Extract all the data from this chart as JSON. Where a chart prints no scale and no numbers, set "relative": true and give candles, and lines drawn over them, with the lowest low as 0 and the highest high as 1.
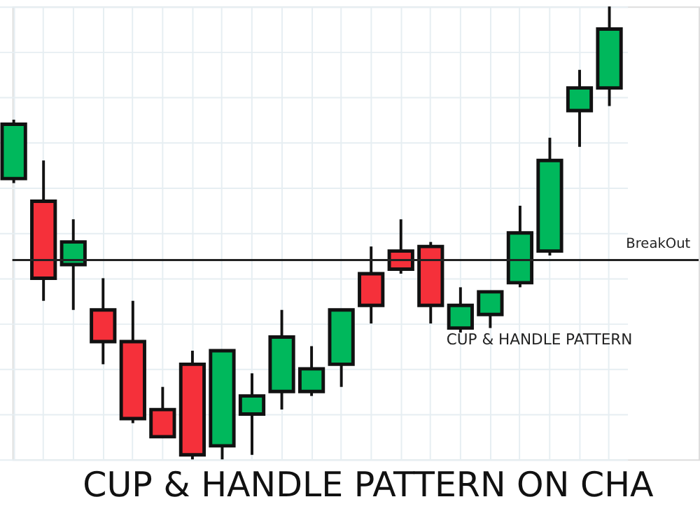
{
  "chart_data": {
    "type": "candlestick",
    "title": "CUP & HANDLE PATTERN ON CHA",
    "relative": true,
    "grid": true,
    "tick_labels": false,
    "categories": [
      null,
      null,
      null,
      null,
      null,
      null,
      null,
      null,
      null,
      null,
      null,
      null,
      null,
      null,
      null,
      null,
      null,
      null,
      null,
      null,
      null
    ],
    "ohlc": [
      [
        0.62,
        0.75,
        0.61,
        0.74
      ],
      [
        0.57,
        0.66,
        0.35,
        0.4
      ],
      [
        0.43,
        0.53,
        0.33,
        0.48
      ],
      [
        0.33,
        0.4,
        0.21,
        0.26
      ],
      [
        0.26,
        0.35,
        0.08,
        0.09
      ],
      [
        0.11,
        0.16,
        0.05,
        0.05
      ],
      [
        0.21,
        0.24,
        0.0,
        0.01
      ],
      [
        0.03,
        0.24,
        0.0,
        0.24
      ],
      [
        0.1,
        0.19,
        0.01,
        0.14
      ],
      [
        0.15,
        0.33,
        0.11,
        0.27
      ],
      [
        0.15,
        0.25,
        0.14,
        0.2
      ],
      [
        0.21,
        0.33,
        0.16,
        0.33
      ],
      [
        0.41,
        0.47,
        0.3,
        0.34
      ],
      [
        0.46,
        0.53,
        0.41,
        0.42
      ],
      [
        0.47,
        0.48,
        0.3,
        0.34
      ],
      [
        0.29,
        0.38,
        0.28,
        0.34
      ],
      [
        0.32,
        0.37,
        0.29,
        0.37
      ],
      [
        0.39,
        0.56,
        0.38,
        0.5
      ],
      [
        0.46,
        0.71,
        0.45,
        0.66
      ],
      [
        0.77,
        0.86,
        0.69,
        0.82
      ],
      [
        0.82,
        1.0,
        0.78,
        0.95
      ]
    ],
    "colors": [
      "#00b85c",
      "#f5303a",
      "#00b85c",
      "#f5303a",
      "#f5303a",
      "#f5303a",
      "#f5303a",
      "#00b85c",
      "#00b85c",
      "#00b85c",
      "#00b85c",
      "#00b85c",
      "#f5303a",
      "#f5303a",
      "#f5303a",
      "#00b85c",
      "#00b85c",
      "#00b85c",
      "#00b85c",
      "#00b85c",
      "#00b85c"
    ],
    "ref_lines": [
      {
        "axis": "y",
        "value": 0.44,
        "label": "BreakOut",
        "color": "#222222"
      }
    ],
    "annotations": [
      "CUP & HANDLE PATTERN"
    ]
  }
}
